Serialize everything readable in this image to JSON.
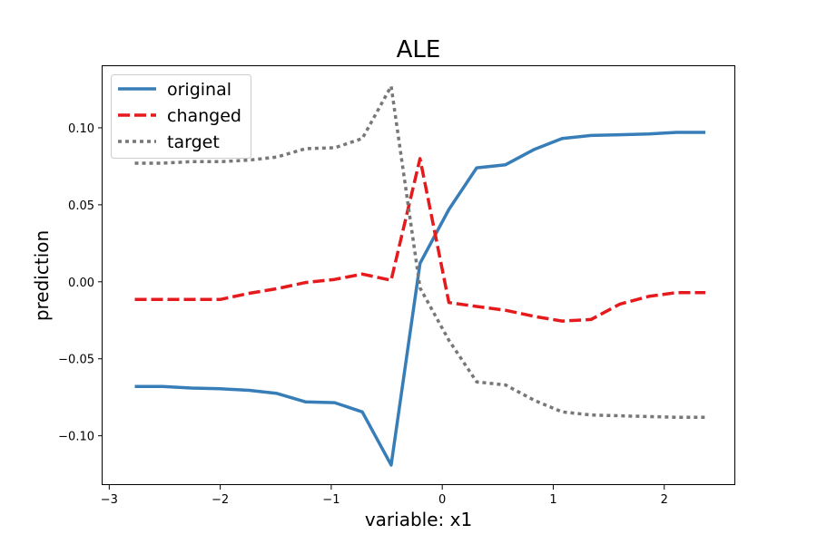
{
  "chart_data": {
    "type": "line",
    "title": "ALE",
    "xlabel": "variable: x1",
    "ylabel": "prediction",
    "xlim": [
      -3.06,
      2.64
    ],
    "ylim": [
      -0.132,
      0.14
    ],
    "xticks": [
      -3,
      -2,
      -1,
      0,
      1,
      2
    ],
    "xtick_labels": [
      "−3",
      "−2",
      "−1",
      "0",
      "1",
      "2"
    ],
    "yticks": [
      -0.1,
      -0.05,
      0.0,
      0.05,
      0.1
    ],
    "ytick_labels": [
      "−0.10",
      "−0.05",
      "0.00",
      "0.05",
      "0.10"
    ],
    "grid": false,
    "legend_position": "top-left",
    "series": [
      {
        "name": "original",
        "color": "#377eb8",
        "style": "solid",
        "x": [
          -2.77,
          -2.52,
          -2.26,
          -2.0,
          -1.74,
          -1.49,
          -1.23,
          -0.97,
          -0.72,
          -0.46,
          -0.2,
          0.06,
          0.31,
          0.57,
          0.83,
          1.08,
          1.34,
          1.6,
          1.86,
          2.11,
          2.37
        ],
        "y": [
          -0.068,
          -0.068,
          -0.069,
          -0.0695,
          -0.0705,
          -0.0725,
          -0.078,
          -0.0785,
          -0.0845,
          -0.119,
          0.012,
          0.047,
          0.074,
          0.076,
          0.086,
          0.093,
          0.095,
          0.0955,
          0.096,
          0.097,
          0.097
        ]
      },
      {
        "name": "changed",
        "color": "#e41a1c",
        "style": "dashed",
        "x": [
          -2.77,
          -2.52,
          -2.26,
          -2.0,
          -1.74,
          -1.49,
          -1.23,
          -0.97,
          -0.72,
          -0.46,
          -0.2,
          0.06,
          0.31,
          0.57,
          0.83,
          1.08,
          1.34,
          1.6,
          1.86,
          2.11,
          2.37
        ],
        "y": [
          -0.0115,
          -0.0115,
          -0.0115,
          -0.0115,
          -0.0075,
          -0.0045,
          -0.0005,
          0.0015,
          0.005,
          0.001,
          0.08,
          -0.0135,
          -0.016,
          -0.0185,
          -0.0225,
          -0.0255,
          -0.0245,
          -0.0145,
          -0.0095,
          -0.007,
          -0.007
        ]
      },
      {
        "name": "target",
        "color": "#777777",
        "style": "dotted",
        "x": [
          -2.77,
          -2.52,
          -2.26,
          -2.0,
          -1.74,
          -1.49,
          -1.23,
          -0.97,
          -0.72,
          -0.46,
          -0.2,
          0.06,
          0.31,
          0.57,
          0.83,
          1.08,
          1.34,
          1.6,
          1.86,
          2.11,
          2.37
        ],
        "y": [
          0.077,
          0.077,
          0.078,
          0.078,
          0.079,
          0.081,
          0.0865,
          0.087,
          0.093,
          0.127,
          -0.004,
          -0.038,
          -0.065,
          -0.067,
          -0.077,
          -0.0845,
          -0.0865,
          -0.087,
          -0.0875,
          -0.088,
          -0.088
        ]
      }
    ]
  }
}
